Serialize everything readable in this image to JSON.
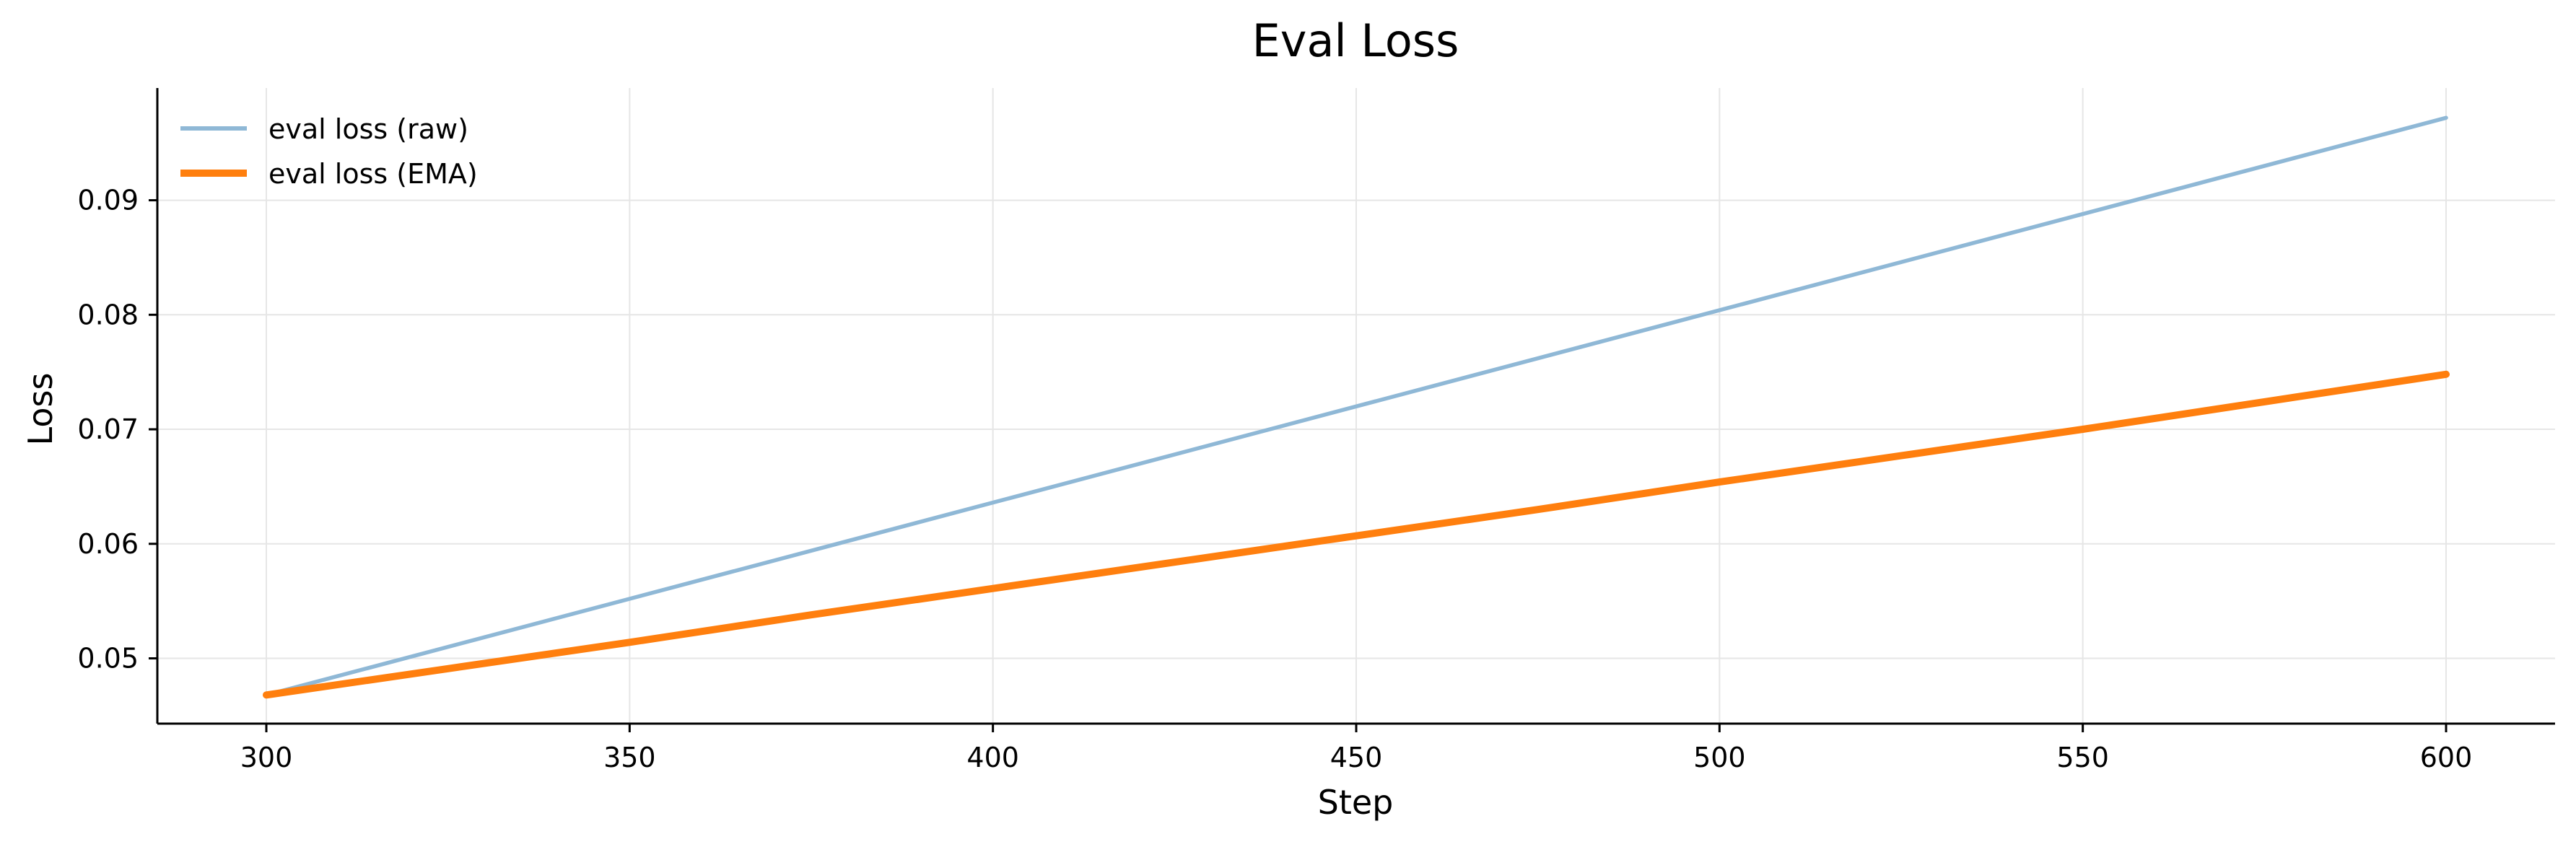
{
  "chart_data": {
    "type": "line",
    "title": "Eval Loss",
    "xlabel": "Step",
    "ylabel": "Loss",
    "xlim": [
      285,
      615
    ],
    "ylim": [
      0.0443,
      0.0998
    ],
    "xticks": [
      300,
      350,
      400,
      450,
      500,
      550,
      600
    ],
    "yticks": [
      0.05,
      0.06,
      0.07,
      0.08,
      0.09
    ],
    "xtick_labels": [
      "300",
      "350",
      "400",
      "450",
      "500",
      "550",
      "600"
    ],
    "ytick_labels": [
      "0.05",
      "0.06",
      "0.07",
      "0.08",
      "0.09"
    ],
    "grid": true,
    "legend_position": "top-left",
    "series": [
      {
        "name": "eval loss (raw)",
        "color": "#8fb8d6",
        "x": [
          300,
          600
        ],
        "y": [
          0.0468,
          0.0972
        ]
      },
      {
        "name": "eval loss (EMA)",
        "color": "#ff7f0e",
        "x": [
          300,
          325,
          350,
          375,
          400,
          425,
          450,
          475,
          500,
          525,
          550,
          575,
          600
        ],
        "y": [
          0.0468,
          0.0491,
          0.0514,
          0.0538,
          0.0561,
          0.0584,
          0.0607,
          0.063,
          0.0654,
          0.0677,
          0.07,
          0.0724,
          0.0748
        ]
      }
    ]
  }
}
